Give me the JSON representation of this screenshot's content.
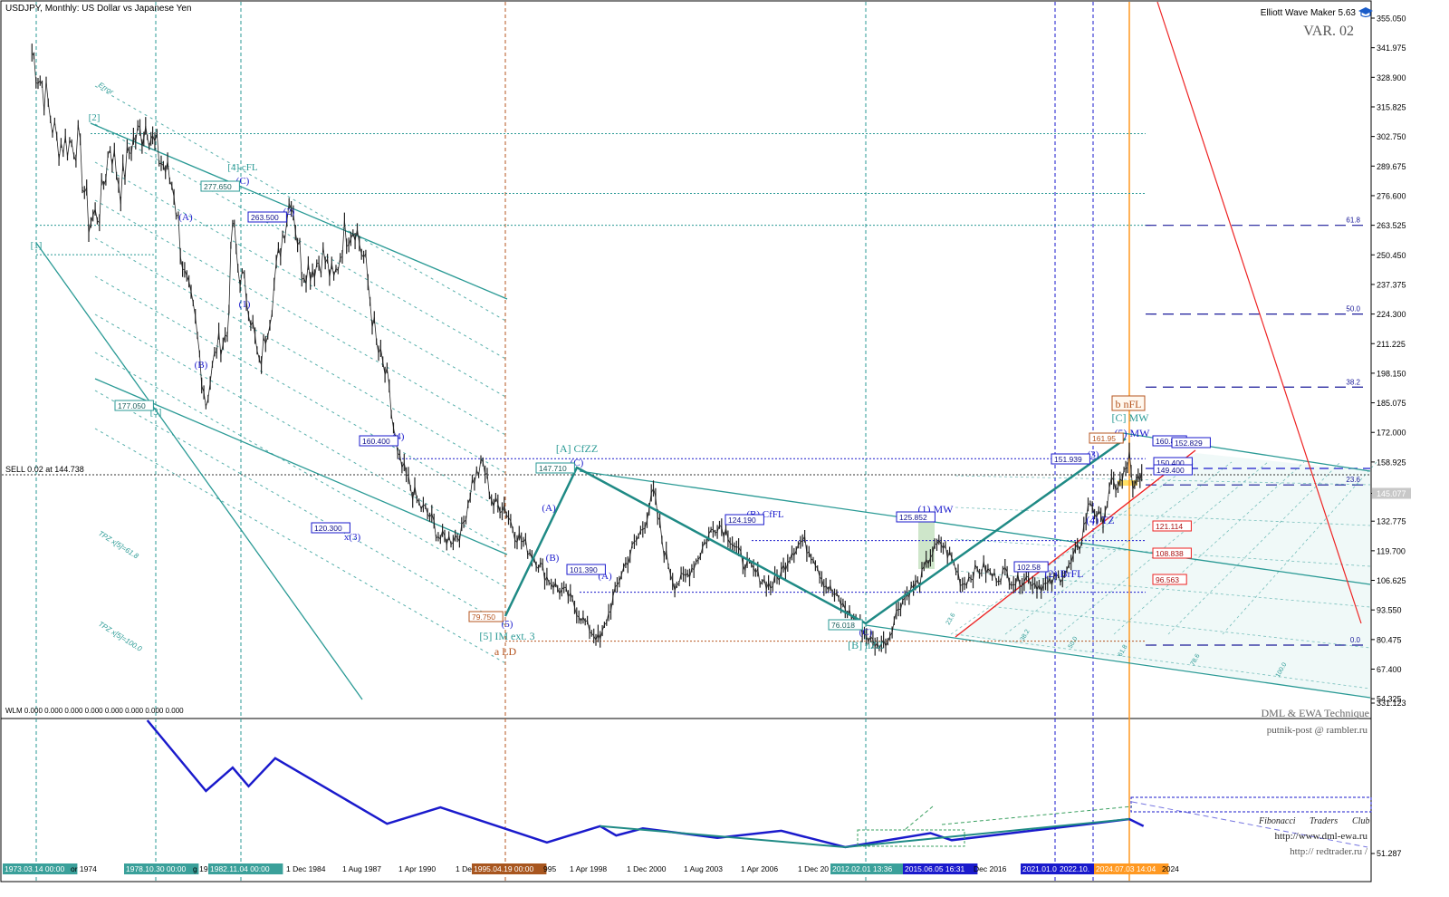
{
  "header": {
    "symbol_line": "USDJPY, Monthly:  US Dollar vs Japanese Yen",
    "ewm": "Elliott Wave Maker 5.63",
    "variant": "VAR. 02"
  },
  "indicator": {
    "label": "WLM 0.000 0.000 0.000 0.000 0.000 0.000 0.000 0.000",
    "credit1": "DML & EWA Technique",
    "credit2": "putnik-post @ rambler.ru",
    "club_words": [
      "Fibonacci",
      "Traders",
      "Club"
    ],
    "url1": "http://www.dml-ewa.ru",
    "url2": "http:// redtrader.ru /"
  },
  "sell_label": "SELL 0.02 at 144.738",
  "colors": {
    "teal": "#2a9a95",
    "blue": "#1a1acc",
    "orange": "#ff9922",
    "brown": "#b5541f",
    "red": "#ee2222",
    "price": "#222222"
  },
  "chart_data": {
    "type": "line",
    "title": "USDJPY, Monthly:  US Dollar vs Japanese Yen",
    "y_ticks": [
      "355.050",
      "341.975",
      "328.900",
      "315.825",
      "302.750",
      "289.675",
      "276.600",
      "263.525",
      "250.450",
      "237.375",
      "224.300",
      "211.225",
      "198.150",
      "185.075",
      "172.000",
      "158.925",
      "145.077",
      "132.775",
      "119.700",
      "106.625",
      "93.550",
      "80.475",
      "67.400",
      "54.325"
    ],
    "current_price": "145.077",
    "ylim": [
      44.0,
      364.0
    ],
    "x_labels": [
      {
        "t": "1973.03.14 00:00",
        "style": "box"
      },
      {
        "t": "or 1974",
        "style": "plain"
      },
      {
        "t": "1978.10.30 00:00",
        "style": "box"
      },
      {
        "t": "g 19",
        "style": "plain"
      },
      {
        "t": "1982.11.04 00:00",
        "style": "box"
      },
      {
        "t": "1 Dec 1984",
        "style": "plain"
      },
      {
        "t": "1 Aug 1987",
        "style": "plain"
      },
      {
        "t": "1 Apr 1990",
        "style": "plain"
      },
      {
        "t": "1 De",
        "style": "plain"
      },
      {
        "t": "1995.04.19 00:00",
        "style": "brown"
      },
      {
        "t": "995",
        "style": "plain"
      },
      {
        "t": "1 Apr 1998",
        "style": "plain"
      },
      {
        "t": "1 Dec 2000",
        "style": "plain"
      },
      {
        "t": "1 Aug 2003",
        "style": "plain"
      },
      {
        "t": "1 Apr 2006",
        "style": "plain"
      },
      {
        "t": "1 Dec 20",
        "style": "plain"
      },
      {
        "t": "2012.02.01 13:36",
        "style": "box"
      },
      {
        "t": "2015.06.05 16:31",
        "style": "blue"
      },
      {
        "t": "Dec 2016",
        "style": "plain"
      },
      {
        "t": "2021.01.0",
        "style": "blue"
      },
      {
        "t": "2022.10.",
        "style": "blue"
      },
      {
        "t": "2024.07.03 14:04",
        "style": "orange"
      },
      {
        "t": "2024",
        "style": "plain"
      }
    ],
    "indicator_ticks": [
      "331.123",
      "51.287"
    ],
    "series": [
      {
        "values": [
          [
            "1973-01",
            340
          ],
          [
            "1973-09",
            320
          ],
          [
            "1974-03",
            300
          ],
          [
            "1974-09",
            300
          ],
          [
            "1975-03",
            300
          ],
          [
            "1975-09",
            265
          ],
          [
            "1976-03",
            270
          ],
          [
            "1976-09",
            300
          ],
          [
            "1977-03",
            280
          ],
          [
            "1977-09",
            300
          ],
          [
            "1978-03",
            305
          ],
          [
            "1978-06",
            310
          ],
          [
            "1978-09",
            300
          ],
          [
            "1979-03",
            290
          ],
          [
            "1979-09",
            280
          ],
          [
            "1980-03",
            240
          ],
          [
            "1980-09",
            220
          ],
          [
            "1981-03",
            185
          ],
          [
            "1981-09",
            210
          ],
          [
            "1982-03",
            215
          ],
          [
            "1982-06",
            265
          ],
          [
            "1982-09",
            245
          ],
          [
            "1983-03",
            230
          ],
          [
            "1983-09",
            200
          ],
          [
            "1984-03",
            225
          ],
          [
            "1984-09",
            255
          ],
          [
            "1985-03",
            278
          ],
          [
            "1985-09",
            245
          ],
          [
            "1986-03",
            245
          ],
          [
            "1986-09",
            250
          ],
          [
            "1987-03",
            238
          ],
          [
            "1987-09",
            260
          ],
          [
            "1988-03",
            264
          ],
          [
            "1988-09",
            245
          ],
          [
            "1989-03",
            210
          ],
          [
            "1989-09",
            195
          ],
          [
            "1990-03",
            160
          ],
          [
            "1990-09",
            150
          ],
          [
            "1991-03",
            140
          ],
          [
            "1991-09",
            135
          ],
          [
            "1992-03",
            125
          ],
          [
            "1992-09",
            125
          ],
          [
            "1993-03",
            128
          ],
          [
            "1993-09",
            150
          ],
          [
            "1994-03",
            158
          ],
          [
            "1994-09",
            140
          ],
          [
            "1995-03",
            140
          ],
          [
            "1995-09",
            128
          ],
          [
            "1996-03",
            122
          ],
          [
            "1996-09",
            116
          ],
          [
            "1997-03",
            108
          ],
          [
            "1997-09",
            103
          ],
          [
            "1998-03",
            100
          ],
          [
            "1998-09",
            92
          ],
          [
            "1999-03",
            85
          ],
          [
            "1999-09",
            80
          ],
          [
            "2000-03",
            95
          ],
          [
            "2000-09",
            110
          ],
          [
            "2001-03",
            120
          ],
          [
            "2001-09",
            130
          ],
          [
            "2002-03",
            145
          ],
          [
            "2002-09",
            120
          ],
          [
            "2003-03",
            105
          ],
          [
            "2003-09",
            108
          ],
          [
            "2004-03",
            115
          ],
          [
            "2004-09",
            125
          ],
          [
            "2005-03",
            132
          ],
          [
            "2005-09",
            128
          ],
          [
            "2006-03",
            118
          ],
          [
            "2006-09",
            112
          ],
          [
            "2007-03",
            108
          ],
          [
            "2007-09",
            104
          ],
          [
            "2008-03",
            110
          ],
          [
            "2008-09",
            120
          ],
          [
            "2009-03",
            124
          ],
          [
            "2009-09",
            118
          ],
          [
            "2010-03",
            106
          ],
          [
            "2010-09",
            100
          ],
          [
            "2011-03",
            94
          ],
          [
            "2011-09",
            89
          ],
          [
            "2012-03",
            82
          ],
          [
            "2012-09",
            78
          ],
          [
            "2013-03",
            80
          ],
          [
            "2013-09",
            95
          ],
          [
            "2014-03",
            102
          ],
          [
            "2014-09",
            106
          ],
          [
            "2015-03",
            118
          ],
          [
            "2015-09",
            123
          ],
          [
            "2016-03",
            116
          ],
          [
            "2016-09",
            105
          ],
          [
            "2017-03",
            110
          ],
          [
            "2017-09",
            112
          ],
          [
            "2018-03",
            108
          ],
          [
            "2018-09",
            110
          ],
          [
            "2019-03",
            106
          ],
          [
            "2019-09",
            108
          ],
          [
            "2020-03",
            105
          ],
          [
            "2020-09",
            104
          ],
          [
            "2021-03",
            108
          ],
          [
            "2021-09",
            112
          ],
          [
            "2022-03",
            122
          ],
          [
            "2022-09",
            142
          ],
          [
            "2023-03",
            132
          ],
          [
            "2023-09",
            148
          ],
          [
            "2024-03",
            150
          ],
          [
            "2024-07",
            161
          ],
          [
            "2024-09",
            144
          ],
          [
            "2025-01",
            155
          ],
          [
            "2025-03",
            148
          ]
        ]
      }
    ]
  },
  "price_boxes": [
    {
      "t": "277.650",
      "c": "teal"
    },
    {
      "t": "263.500",
      "c": "blue"
    },
    {
      "t": "177.050",
      "c": "teal"
    },
    {
      "t": "160.400",
      "c": "blue"
    },
    {
      "t": "147.710",
      "c": "teal"
    },
    {
      "t": "120.300",
      "c": "blue"
    },
    {
      "t": "101.390",
      "c": "blue"
    },
    {
      "t": "79.750",
      "c": "brown"
    },
    {
      "t": "124.190",
      "c": "blue"
    },
    {
      "t": "76.018",
      "c": "teal"
    },
    {
      "t": "125.852",
      "c": "blue"
    },
    {
      "t": "102.58",
      "c": "blue"
    },
    {
      "t": "151.939",
      "c": "blue"
    },
    {
      "t": "161.95",
      "c": "brown"
    },
    {
      "t": "160.89",
      "c": "blue"
    },
    {
      "t": "152.829",
      "c": "blue"
    },
    {
      "t": "150.400",
      "c": "blue"
    },
    {
      "t": "149.400",
      "c": "blue"
    },
    {
      "t": "121.114",
      "c": "red"
    },
    {
      "t": "108.838",
      "c": "red"
    },
    {
      "t": "96.563",
      "c": "red"
    }
  ],
  "wave_labels": [
    {
      "t": "[1]",
      "c": "teal"
    },
    {
      "t": "[2]",
      "c": "teal"
    },
    {
      "t": "[3]",
      "c": "teal"
    },
    {
      "t": "[4] cFL",
      "c": "teal"
    },
    {
      "t": "(C)",
      "c": "blue"
    },
    {
      "t": "(A)",
      "c": "blue"
    },
    {
      "t": "(B)",
      "c": "blue"
    },
    {
      "t": "(1)",
      "c": "blue"
    },
    {
      "t": "(2)",
      "c": "blue"
    },
    {
      "t": "(4)",
      "c": "blue"
    },
    {
      "t": "x(3)",
      "c": "blue"
    },
    {
      "t": "(5)",
      "c": "blue"
    },
    {
      "t": "[5] IM ext. 3",
      "c": "teal"
    },
    {
      "t": "a LD",
      "c": "brown"
    },
    {
      "t": "[A] CfZZ",
      "c": "teal"
    },
    {
      "t": "(C)",
      "c": "blue"
    },
    {
      "t": "(A)",
      "c": "blue"
    },
    {
      "t": "(B)",
      "c": "blue"
    },
    {
      "t": "(A)",
      "c": "blue"
    },
    {
      "t": "(B) CfFL",
      "c": "blue"
    },
    {
      "t": "(C)",
      "c": "blue"
    },
    {
      "t": "[B] nZZ",
      "c": "teal"
    },
    {
      "t": "(1) MW",
      "c": "blue"
    },
    {
      "t": "(2) BrFL",
      "c": "blue"
    },
    {
      "t": "(3)",
      "c": "blue"
    },
    {
      "t": "(4) TZ",
      "c": "blue"
    },
    {
      "t": "(5) MW",
      "c": "blue"
    },
    {
      "t": "[C] MW",
      "c": "teal"
    },
    {
      "t": "b nFL",
      "c": "brown"
    }
  ],
  "fib_levels": [
    {
      "t": "61.8",
      "v": 263.5
    },
    {
      "t": "50.0",
      "v": 224.3
    },
    {
      "t": "38.2",
      "v": 192.0
    },
    {
      "t": "23.6",
      "v": 148.8
    },
    {
      "t": "0.0",
      "v": 78.0
    }
  ],
  "fan_labels": [
    "Error",
    "TPZ x[5]=61.8",
    "TPZ x[5]=100.0"
  ],
  "grid_labels": [
    "23.6",
    "38.2",
    "50.0",
    "61.8",
    "78.6",
    "100.0"
  ],
  "wlm": [
    [
      "1978-06",
      331
    ],
    [
      "1981-03",
      180
    ],
    [
      "1982-06",
      230
    ],
    [
      "1983-03",
      190
    ],
    [
      "1984-06",
      250
    ],
    [
      "1989-09",
      110
    ],
    [
      "1992-03",
      145
    ],
    [
      "1997-03",
      70
    ],
    [
      "1999-09",
      105
    ],
    [
      "2000-06",
      85
    ],
    [
      "2001-09",
      100
    ],
    [
      "2005-03",
      80
    ],
    [
      "2008-03",
      95
    ],
    [
      "2011-03",
      60
    ],
    [
      "2015-03",
      90
    ],
    [
      "2016-03",
      75
    ],
    [
      "2022-09",
      110
    ],
    [
      "2024-07",
      120
    ],
    [
      "2025-03",
      105
    ]
  ]
}
